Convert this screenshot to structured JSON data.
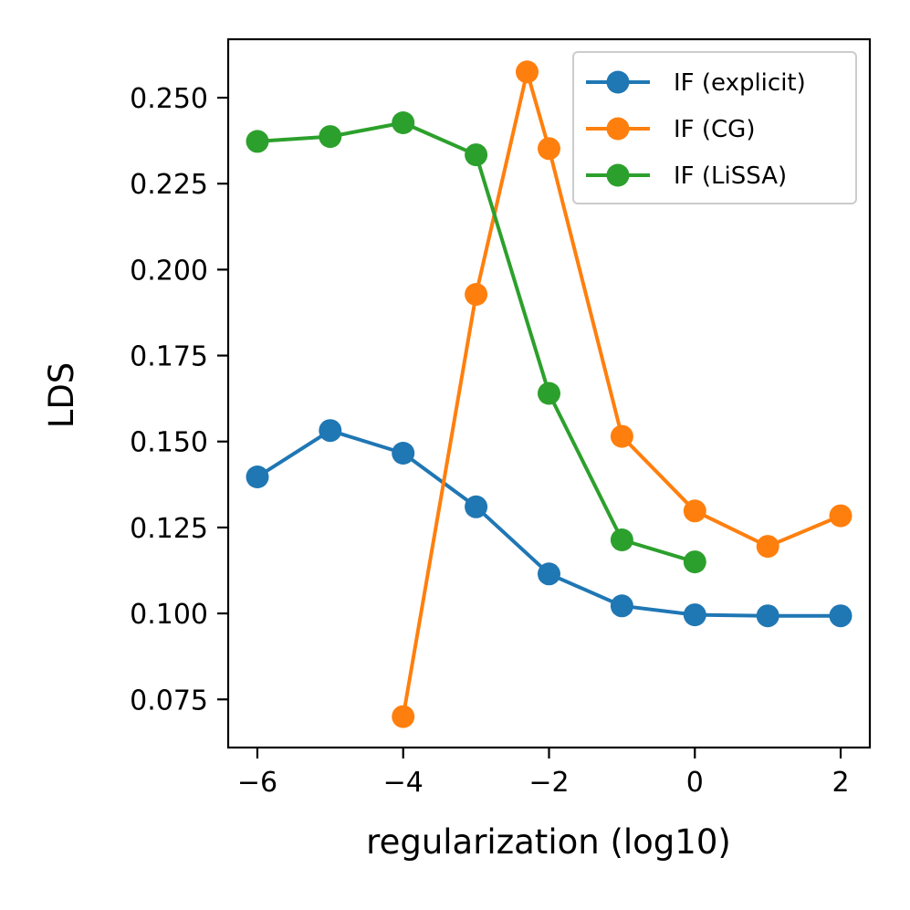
{
  "chart_data": {
    "type": "line",
    "title": "",
    "xlabel": "regularization (log10)",
    "ylabel": "LDS",
    "xlim": [
      -6.4,
      2.4
    ],
    "ylim": [
      0.061,
      0.267
    ],
    "xticks": [
      -6,
      -4,
      -2,
      0,
      2
    ],
    "xtick_labels": [
      "−6",
      "−4",
      "−2",
      "0",
      "2"
    ],
    "yticks": [
      0.075,
      0.1,
      0.125,
      0.15,
      0.175,
      0.2,
      0.225,
      0.25
    ],
    "ytick_labels": [
      "0.075",
      "0.100",
      "0.125",
      "0.150",
      "0.175",
      "0.200",
      "0.225",
      "0.250"
    ],
    "grid": false,
    "legend_position": "top-right",
    "series": [
      {
        "name": "IF (explicit)",
        "color": "#1f77b4",
        "x": [
          -6,
          -5,
          -4,
          -3,
          -2,
          -1,
          0,
          1,
          2
        ],
        "y": [
          0.1397,
          0.1532,
          0.1466,
          0.131,
          0.1115,
          0.1022,
          0.0996,
          0.0993,
          0.0993
        ]
      },
      {
        "name": "IF (CG)",
        "color": "#ff7f0e",
        "x": [
          -4,
          -3,
          -2.3,
          -2,
          -1,
          0,
          1,
          2
        ],
        "y": [
          0.07,
          0.1928,
          0.2575,
          0.2352,
          0.1515,
          0.1298,
          0.1195,
          0.1284
        ]
      },
      {
        "name": "IF (LiSSA)",
        "color": "#2ca02c",
        "x": [
          -6,
          -5,
          -4,
          -3,
          -2,
          -1,
          0
        ],
        "y": [
          0.2373,
          0.2387,
          0.2427,
          0.2334,
          0.164,
          0.1214,
          0.115
        ]
      }
    ]
  }
}
